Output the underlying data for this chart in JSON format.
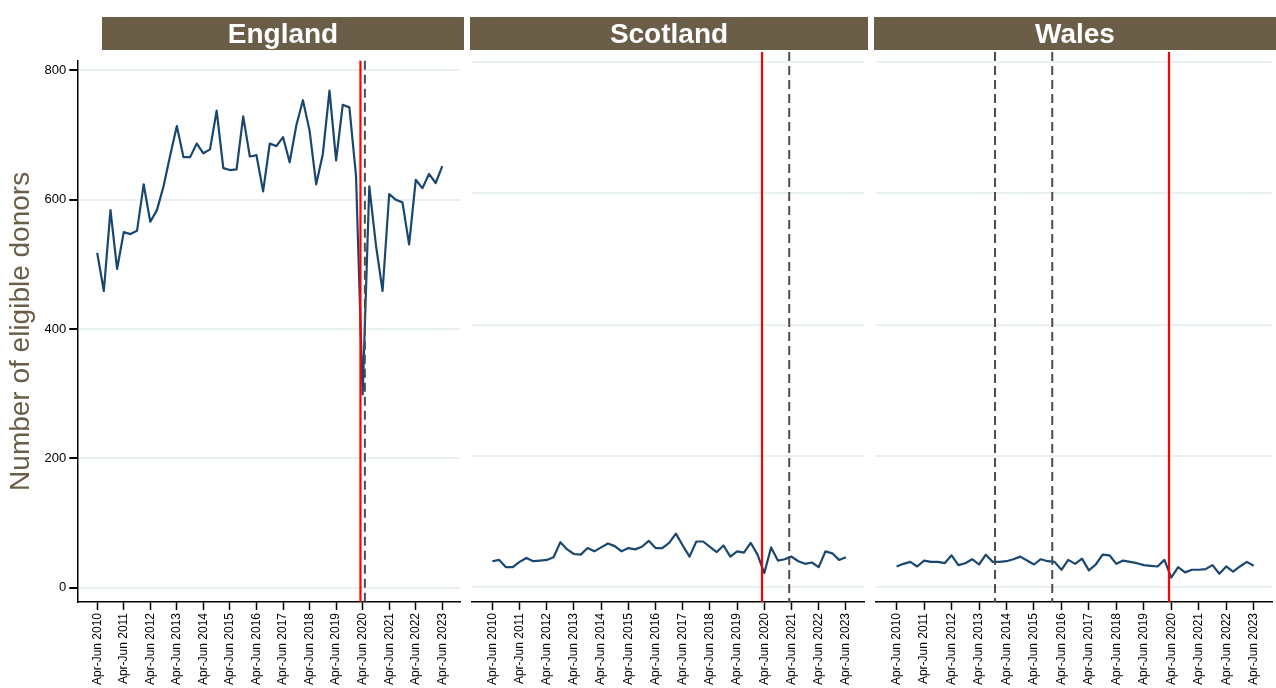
{
  "chart_data": [
    {
      "type": "line",
      "title": "England",
      "ylabel": "Number of eligible donors",
      "color": "#1a476f",
      "grid": "y",
      "xlim": [
        "2009-07",
        "2023-12"
      ],
      "ylim": [
        -22,
        815
      ],
      "xticks": [
        {
          "value": "2010-04",
          "label": "Apr-Jun 2010"
        },
        {
          "value": "2011-04",
          "label": "Apr-Jun 2011"
        },
        {
          "value": "2012-04",
          "label": "Apr-Jun 2012"
        },
        {
          "value": "2013-04",
          "label": "Apr-Jun 2013"
        },
        {
          "value": "2014-04",
          "label": "Apr-Jun 2014"
        },
        {
          "value": "2015-04",
          "label": "Apr-Jun 2015"
        },
        {
          "value": "2016-04",
          "label": "Apr-Jun 2016"
        },
        {
          "value": "2017-04",
          "label": "Apr-Jun 2017"
        },
        {
          "value": "2018-04",
          "label": "Apr-Jun 2018"
        },
        {
          "value": "2019-04",
          "label": "Apr-Jun 2019"
        },
        {
          "value": "2020-04",
          "label": "Apr-Jun 2020"
        },
        {
          "value": "2021-04",
          "label": "Apr-Jun 2021"
        },
        {
          "value": "2022-04",
          "label": "Apr-Jun 2022"
        },
        {
          "value": "2023-04",
          "label": "Apr-Jun 2023"
        }
      ],
      "yticks": [
        0,
        200,
        400,
        600,
        800
      ],
      "x": [
        "2010-04",
        "2010-07",
        "2010-10",
        "2011-01",
        "2011-04",
        "2011-07",
        "2011-10",
        "2012-01",
        "2012-04",
        "2012-07",
        "2012-10",
        "2013-01",
        "2013-04",
        "2013-07",
        "2013-10",
        "2014-01",
        "2014-04",
        "2014-07",
        "2014-10",
        "2015-01",
        "2015-04",
        "2015-07",
        "2015-10",
        "2016-01",
        "2016-04",
        "2016-07",
        "2016-10",
        "2017-01",
        "2017-04",
        "2017-07",
        "2017-10",
        "2018-01",
        "2018-04",
        "2018-07",
        "2018-10",
        "2019-01",
        "2019-04",
        "2019-07",
        "2019-10",
        "2020-01",
        "2020-04",
        "2020-07",
        "2020-10",
        "2021-01",
        "2021-04",
        "2021-07",
        "2021-10",
        "2022-01",
        "2022-04",
        "2022-07",
        "2022-10",
        "2023-01",
        "2023-04"
      ],
      "values": [
        518,
        459,
        584,
        493,
        550,
        547,
        552,
        624,
        566,
        584,
        621,
        669,
        714,
        666,
        666,
        687,
        672,
        678,
        738,
        649,
        646,
        647,
        729,
        667,
        669,
        613,
        687,
        683,
        697,
        658,
        715,
        754,
        707,
        624,
        671,
        769,
        661,
        747,
        743,
        637,
        299,
        621,
        530,
        459,
        609,
        600,
        596,
        531,
        631,
        618,
        640,
        626,
        652
      ],
      "ref_lines": [
        {
          "axis": "x",
          "value": "2020-03",
          "color": "#ff0000",
          "line_style": "solid"
        },
        {
          "axis": "x",
          "value": "2020-05",
          "color": "#4d4d4d",
          "line_style": "dashed"
        }
      ]
    },
    {
      "type": "line",
      "title": "Scotland",
      "color": "#1a476f",
      "grid": "y",
      "tick_labels": "x",
      "xlim": [
        "2009-07",
        "2023-12"
      ],
      "ylim": [
        -22,
        815
      ],
      "xticks": [
        {
          "value": "2010-04",
          "label": "Apr-Jun 2010"
        },
        {
          "value": "2011-04",
          "label": "Apr-Jun 2011"
        },
        {
          "value": "2012-04",
          "label": "Apr-Jun 2012"
        },
        {
          "value": "2013-04",
          "label": "Apr-Jun 2013"
        },
        {
          "value": "2014-04",
          "label": "Apr-Jun 2014"
        },
        {
          "value": "2015-04",
          "label": "Apr-Jun 2015"
        },
        {
          "value": "2016-04",
          "label": "Apr-Jun 2016"
        },
        {
          "value": "2017-04",
          "label": "Apr-Jun 2017"
        },
        {
          "value": "2018-04",
          "label": "Apr-Jun 2018"
        },
        {
          "value": "2019-04",
          "label": "Apr-Jun 2019"
        },
        {
          "value": "2020-04",
          "label": "Apr-Jun 2020"
        },
        {
          "value": "2021-04",
          "label": "Apr-Jun 2021"
        },
        {
          "value": "2022-04",
          "label": "Apr-Jun 2022"
        },
        {
          "value": "2023-04",
          "label": "Apr-Jun 2023"
        }
      ],
      "yticks": [
        0,
        200,
        400,
        600,
        800
      ],
      "x": [
        "2010-04",
        "2010-07",
        "2010-10",
        "2011-01",
        "2011-04",
        "2011-07",
        "2011-10",
        "2012-01",
        "2012-04",
        "2012-07",
        "2012-10",
        "2013-01",
        "2013-04",
        "2013-07",
        "2013-10",
        "2014-01",
        "2014-04",
        "2014-07",
        "2014-10",
        "2015-01",
        "2015-04",
        "2015-07",
        "2015-10",
        "2016-01",
        "2016-04",
        "2016-07",
        "2016-10",
        "2017-01",
        "2017-04",
        "2017-07",
        "2017-10",
        "2018-01",
        "2018-04",
        "2018-07",
        "2018-10",
        "2019-01",
        "2019-04",
        "2019-07",
        "2019-10",
        "2020-01",
        "2020-04",
        "2020-07",
        "2020-10",
        "2021-01",
        "2021-04",
        "2021-07",
        "2021-10",
        "2022-01",
        "2022-04",
        "2022-07",
        "2022-10",
        "2023-01",
        "2023-04"
      ],
      "values": [
        40,
        42,
        31,
        31,
        39,
        45,
        40,
        41,
        42,
        46,
        69,
        58,
        51,
        50,
        60,
        55,
        61,
        67,
        63,
        55,
        60,
        58,
        62,
        71,
        60,
        60,
        68,
        82,
        64,
        47,
        70,
        70,
        62,
        54,
        64,
        47,
        55,
        53,
        68,
        50,
        22,
        61,
        41,
        43,
        47,
        40,
        36,
        38,
        31,
        55,
        52,
        42,
        46
      ],
      "ref_lines": [
        {
          "axis": "x",
          "value": "2020-03",
          "color": "#ff0000",
          "line_style": "solid"
        },
        {
          "axis": "x",
          "value": "2021-03",
          "color": "#4d4d4d",
          "line_style": "dashed"
        }
      ]
    },
    {
      "type": "line",
      "title": "Wales",
      "color": "#1a476f",
      "grid": "y",
      "tick_labels": "x",
      "xlim": [
        "2009-07",
        "2023-12"
      ],
      "ylim": [
        -22,
        815
      ],
      "xticks": [
        {
          "value": "2010-04",
          "label": "Apr-Jun 2010"
        },
        {
          "value": "2011-04",
          "label": "Apr-Jun 2011"
        },
        {
          "value": "2012-04",
          "label": "Apr-Jun 2012"
        },
        {
          "value": "2013-04",
          "label": "Apr-Jun 2013"
        },
        {
          "value": "2014-04",
          "label": "Apr-Jun 2014"
        },
        {
          "value": "2015-04",
          "label": "Apr-Jun 2015"
        },
        {
          "value": "2016-04",
          "label": "Apr-Jun 2016"
        },
        {
          "value": "2017-04",
          "label": "Apr-Jun 2017"
        },
        {
          "value": "2018-04",
          "label": "Apr-Jun 2018"
        },
        {
          "value": "2019-04",
          "label": "Apr-Jun 2019"
        },
        {
          "value": "2020-04",
          "label": "Apr-Jun 2020"
        },
        {
          "value": "2021-04",
          "label": "Apr-Jun 2021"
        },
        {
          "value": "2022-04",
          "label": "Apr-Jun 2022"
        },
        {
          "value": "2023-04",
          "label": "Apr-Jun 2023"
        }
      ],
      "yticks": [
        0,
        200,
        400,
        600,
        800
      ],
      "x": [
        "2010-04",
        "2010-07",
        "2010-10",
        "2011-01",
        "2011-04",
        "2011-07",
        "2011-10",
        "2012-01",
        "2012-04",
        "2012-07",
        "2012-10",
        "2013-01",
        "2013-04",
        "2013-07",
        "2013-10",
        "2014-01",
        "2014-04",
        "2014-07",
        "2014-10",
        "2015-01",
        "2015-04",
        "2015-07",
        "2015-10",
        "2016-01",
        "2016-04",
        "2016-07",
        "2016-10",
        "2017-01",
        "2017-04",
        "2017-07",
        "2017-10",
        "2018-01",
        "2018-04",
        "2018-07",
        "2018-10",
        "2019-01",
        "2019-04",
        "2019-07",
        "2019-10",
        "2020-01",
        "2020-04",
        "2020-07",
        "2020-10",
        "2021-01",
        "2021-04",
        "2021-07",
        "2021-10",
        "2022-01",
        "2022-04",
        "2022-07",
        "2022-10",
        "2023-01",
        "2023-04"
      ],
      "values": [
        32,
        36,
        39,
        32,
        41,
        39,
        39,
        37,
        49,
        34,
        37,
        43,
        35,
        50,
        39,
        39,
        40,
        43,
        47,
        41,
        35,
        43,
        40,
        39,
        27,
        42,
        36,
        44,
        26,
        35,
        50,
        49,
        36,
        41,
        39,
        37,
        34,
        33,
        32,
        42,
        15,
        31,
        23,
        27,
        27,
        28,
        34,
        21,
        32,
        24,
        32,
        39,
        33
      ],
      "ref_lines": [
        {
          "axis": "x",
          "value": "2013-11",
          "color": "#4d4d4d",
          "line_style": "dashed"
        },
        {
          "axis": "x",
          "value": "2015-12",
          "color": "#4d4d4d",
          "line_style": "dashed"
        },
        {
          "axis": "x",
          "value": "2020-03",
          "color": "#ff0000",
          "line_style": "solid"
        }
      ]
    }
  ]
}
